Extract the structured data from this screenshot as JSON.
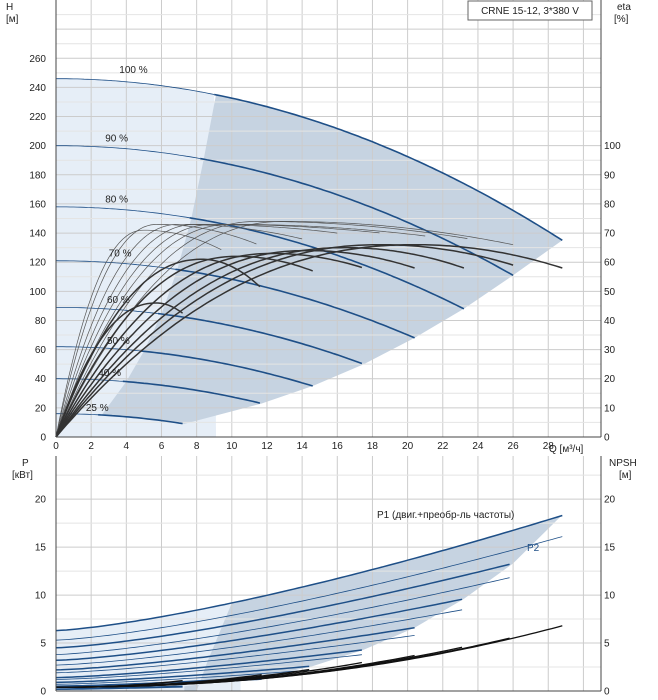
{
  "chart_data": {
    "type": "line",
    "title": "CRNE 15-12, 3*380 V",
    "colors": {
      "head": "#1e4f87",
      "eff": "#333333",
      "power": "#1e4f87",
      "npsh": "#111111",
      "shade": "#c6d3e1",
      "shade_light": "#e6eef7",
      "grid": "#cccccc"
    },
    "head_panel": {
      "y_label": "H",
      "y_unit": "[м]",
      "y_ticks": [
        0,
        20,
        40,
        60,
        80,
        100,
        120,
        140,
        160,
        180,
        200,
        220,
        240,
        260
      ],
      "y_range": [
        0,
        300
      ],
      "right_label": "eta",
      "right_unit": "[%]",
      "right_ticks": [
        0,
        10,
        20,
        30,
        40,
        50,
        60,
        70,
        80,
        90,
        100
      ],
      "x_label": "Q [м³/ч]",
      "x_ticks": [
        0,
        2,
        4,
        6,
        8,
        10,
        12,
        14,
        16,
        18,
        20,
        22,
        24,
        26,
        28
      ],
      "x_range": [
        0,
        31
      ],
      "series": [
        {
          "name": "100 %",
          "label_at": [
            3.6,
            250
          ],
          "shut": 246,
          "q_end": 28.8,
          "h_end": 135,
          "q_left": 9.1
        },
        {
          "name": "90 %",
          "label_at": [
            2.8,
            203
          ],
          "shut": 200,
          "q_end": 26.0,
          "h_end": 111,
          "q_left": 8.4
        },
        {
          "name": "80 %",
          "label_at": [
            2.8,
            161
          ],
          "shut": 158,
          "q_end": 23.2,
          "h_end": 88,
          "q_left": 7.7
        },
        {
          "name": "70 %",
          "label_at": [
            3.0,
            124
          ],
          "shut": 121,
          "q_end": 20.4,
          "h_end": 68,
          "q_left": 6.9
        },
        {
          "name": "60 %",
          "label_at": [
            2.9,
            92
          ],
          "shut": 89,
          "q_end": 17.5,
          "h_end": 50,
          "q_left": 6.0
        },
        {
          "name": "50 %",
          "label_at": [
            2.9,
            64
          ],
          "shut": 62,
          "q_end": 14.6,
          "h_end": 35,
          "q_left": 5.0
        },
        {
          "name": "40 %",
          "label_at": [
            2.4,
            42
          ],
          "shut": 40,
          "q_end": 11.7,
          "h_end": 23,
          "q_left": 4.0
        },
        {
          "name": "25 %",
          "label_at": [
            1.7,
            18
          ],
          "shut": 16,
          "q_end": 7.3,
          "h_end": 9,
          "q_left": 2.6
        }
      ],
      "eff_curves_thick": [
        {
          "peak_q": 20.5,
          "peak": 66,
          "end_q": 28.8,
          "end": 58
        },
        {
          "peak_q": 18.5,
          "peak": 66,
          "end_q": 26.0,
          "end": 59
        },
        {
          "peak_q": 16.5,
          "peak": 65,
          "end_q": 23.2,
          "end": 58
        },
        {
          "peak_q": 14.3,
          "peak": 64,
          "end_q": 20.4,
          "end": 58
        },
        {
          "peak_q": 12.3,
          "peak": 63,
          "end_q": 17.5,
          "end": 58
        },
        {
          "peak_q": 10.3,
          "peak": 62,
          "end_q": 14.6,
          "end": 57
        },
        {
          "peak_q": 8.3,
          "peak": 61,
          "end_q": 11.7,
          "end": 51
        },
        {
          "peak_q": 5.7,
          "peak": 46,
          "end_q": 7.3,
          "end": 42
        }
      ],
      "eff_curves_thin": [
        {
          "peak_q": 13.0,
          "peak": 74,
          "end_q": 26.0,
          "end": 66
        },
        {
          "peak_q": 11.5,
          "peak": 74,
          "end_q": 23.5,
          "end": 68
        },
        {
          "peak_q": 10.0,
          "peak": 73,
          "end_q": 21.0,
          "end": 69
        },
        {
          "peak_q": 9.0,
          "peak": 73,
          "end_q": 18.5,
          "end": 70
        },
        {
          "peak_q": 8.0,
          "peak": 73,
          "end_q": 16.0,
          "end": 70
        },
        {
          "peak_q": 7.0,
          "peak": 73,
          "end_q": 14.0,
          "end": 68
        },
        {
          "peak_q": 5.8,
          "peak": 73,
          "end_q": 11.5,
          "end": 66
        },
        {
          "peak_q": 5.0,
          "peak": 71,
          "end_q": 9.5,
          "end": 64
        }
      ]
    },
    "power_panel": {
      "y_label": "P",
      "y_unit": "[кВт]",
      "y_ticks": [
        0,
        5,
        10,
        15,
        20
      ],
      "y_range": [
        0,
        24.5
      ],
      "right_label": "NPSH",
      "right_unit": "[м]",
      "right_ticks": [
        0,
        5,
        10,
        15,
        20
      ],
      "p1_label": "P1 (двиг.+преобр-ль частоты)",
      "p2_label": "P2",
      "p1_curves": [
        {
          "q_end": 28.8,
          "p0": 6.3,
          "p_end": 18.3
        },
        {
          "q_end": 26.0,
          "p0": 4.5,
          "p_end": 13.3
        },
        {
          "q_end": 23.2,
          "p0": 3.2,
          "p_end": 9.6
        },
        {
          "q_end": 20.4,
          "p0": 2.2,
          "p_end": 6.6
        },
        {
          "q_end": 17.5,
          "p0": 1.4,
          "p_end": 4.3
        },
        {
          "q_end": 14.6,
          "p0": 0.9,
          "p_end": 2.6
        },
        {
          "q_end": 11.7,
          "p0": 0.5,
          "p_end": 1.4
        },
        {
          "q_end": 7.3,
          "p0": 0.2,
          "p_end": 0.5
        }
      ],
      "p2_curves": [
        {
          "q_end": 28.8,
          "p0": 5.3,
          "p_end": 16.1
        },
        {
          "q_end": 26.0,
          "p0": 3.8,
          "p_end": 11.9
        },
        {
          "q_end": 23.2,
          "p0": 2.7,
          "p_end": 8.5
        },
        {
          "q_end": 20.4,
          "p0": 1.9,
          "p_end": 5.8
        },
        {
          "q_end": 17.5,
          "p0": 1.2,
          "p_end": 3.8
        },
        {
          "q_end": 14.6,
          "p0": 0.7,
          "p_end": 2.2
        },
        {
          "q_end": 11.7,
          "p0": 0.4,
          "p_end": 1.2
        },
        {
          "q_end": 7.3,
          "p0": 0.15,
          "p_end": 0.4
        }
      ],
      "npsh_curves": [
        {
          "q_end": 28.8,
          "end": 6.8
        },
        {
          "q_end": 26.0,
          "end": 5.6
        },
        {
          "q_end": 23.2,
          "end": 4.6
        },
        {
          "q_end": 20.4,
          "end": 3.7
        },
        {
          "q_end": 17.5,
          "end": 3.0
        },
        {
          "q_end": 14.6,
          "end": 2.3
        },
        {
          "q_end": 11.7,
          "end": 1.7
        },
        {
          "q_end": 7.3,
          "end": 1.1
        }
      ]
    }
  }
}
